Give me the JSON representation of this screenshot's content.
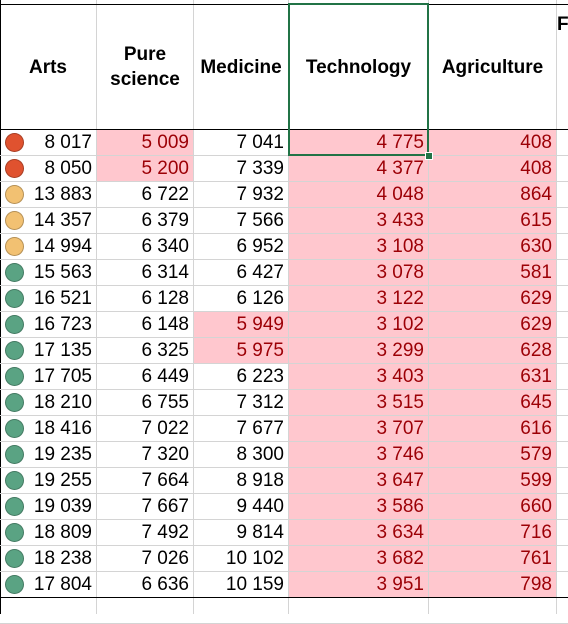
{
  "headers": {
    "arts": "Arts",
    "pure_science": "Pure\nscience",
    "medicine": "Medicine",
    "technology": "Technology",
    "agriculture": "Agriculture",
    "partial": "F"
  },
  "colors": {
    "red": "#e0522f",
    "amber": "#f2c172",
    "green": "#5aa383",
    "highlight_fill": "#ffc7ce",
    "highlight_text": "#9c0006",
    "selection": "#217346"
  },
  "rows": [
    {
      "status": "red",
      "arts": "8 017",
      "pure": "5 009",
      "med": "7 041",
      "tech": "4 775",
      "agri": "408",
      "pure_hl": true,
      "med_hl": false
    },
    {
      "status": "red",
      "arts": "8 050",
      "pure": "5 200",
      "med": "7 339",
      "tech": "4 377",
      "agri": "408",
      "pure_hl": true,
      "med_hl": false
    },
    {
      "status": "amber",
      "arts": "13 883",
      "pure": "6 722",
      "med": "7 932",
      "tech": "4 048",
      "agri": "864",
      "pure_hl": false,
      "med_hl": false
    },
    {
      "status": "amber",
      "arts": "14 357",
      "pure": "6 379",
      "med": "7 566",
      "tech": "3 433",
      "agri": "615",
      "pure_hl": false,
      "med_hl": false
    },
    {
      "status": "amber",
      "arts": "14 994",
      "pure": "6 340",
      "med": "6 952",
      "tech": "3 108",
      "agri": "630",
      "pure_hl": false,
      "med_hl": false
    },
    {
      "status": "green",
      "arts": "15 563",
      "pure": "6 314",
      "med": "6 427",
      "tech": "3 078",
      "agri": "581",
      "pure_hl": false,
      "med_hl": false
    },
    {
      "status": "green",
      "arts": "16 521",
      "pure": "6 128",
      "med": "6 126",
      "tech": "3 122",
      "agri": "629",
      "pure_hl": false,
      "med_hl": false
    },
    {
      "status": "green",
      "arts": "16 723",
      "pure": "6 148",
      "med": "5 949",
      "tech": "3 102",
      "agri": "629",
      "pure_hl": false,
      "med_hl": true
    },
    {
      "status": "green",
      "arts": "17 135",
      "pure": "6 325",
      "med": "5 975",
      "tech": "3 299",
      "agri": "628",
      "pure_hl": false,
      "med_hl": true
    },
    {
      "status": "green",
      "arts": "17 705",
      "pure": "6 449",
      "med": "6 223",
      "tech": "3 403",
      "agri": "631",
      "pure_hl": false,
      "med_hl": false
    },
    {
      "status": "green",
      "arts": "18 210",
      "pure": "6 755",
      "med": "7 312",
      "tech": "3 515",
      "agri": "645",
      "pure_hl": false,
      "med_hl": false
    },
    {
      "status": "green",
      "arts": "18 416",
      "pure": "7 022",
      "med": "7 677",
      "tech": "3 707",
      "agri": "616",
      "pure_hl": false,
      "med_hl": false
    },
    {
      "status": "green",
      "arts": "19 235",
      "pure": "7 320",
      "med": "8 300",
      "tech": "3 746",
      "agri": "579",
      "pure_hl": false,
      "med_hl": false
    },
    {
      "status": "green",
      "arts": "19 255",
      "pure": "7 664",
      "med": "8 918",
      "tech": "3 647",
      "agri": "599",
      "pure_hl": false,
      "med_hl": false
    },
    {
      "status": "green",
      "arts": "19 039",
      "pure": "7 667",
      "med": "9 440",
      "tech": "3 586",
      "agri": "660",
      "pure_hl": false,
      "med_hl": false
    },
    {
      "status": "green",
      "arts": "18 809",
      "pure": "7 492",
      "med": "9 814",
      "tech": "3 634",
      "agri": "716",
      "pure_hl": false,
      "med_hl": false
    },
    {
      "status": "green",
      "arts": "18 238",
      "pure": "7 026",
      "med": "10 102",
      "tech": "3 682",
      "agri": "761",
      "pure_hl": false,
      "med_hl": false
    },
    {
      "status": "green",
      "arts": "17 804",
      "pure": "6 636",
      "med": "10 159",
      "tech": "3 951",
      "agri": "798",
      "pure_hl": false,
      "med_hl": false
    }
  ]
}
